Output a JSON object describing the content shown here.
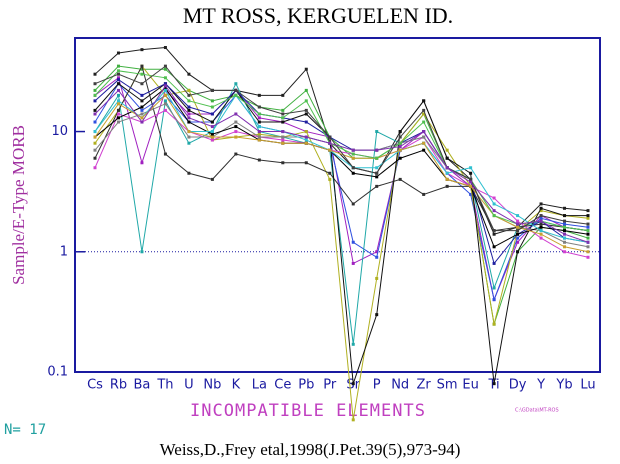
{
  "chart_data": {
    "type": "line",
    "title": "MT ROSS, KERGUELEN ID.",
    "y_label": "Sample/E-Type MORB",
    "x_label": "INCOMPATIBLE ELEMENTS",
    "sample_count": "N= 17",
    "file_note": "C:\\GData\\MT-ROS",
    "citation": "Weiss,D.,Frey etal,1998(J.Pet.39(5),973-94)",
    "log_y": true,
    "ylim": [
      0.1,
      60
    ],
    "yticks": [
      0.1,
      1,
      10
    ],
    "reference_line": 1,
    "categories": [
      "Cs",
      "Rb",
      "Ba",
      "Th",
      "U",
      "Nb",
      "K",
      "La",
      "Ce",
      "Pb",
      "Pr",
      "Sr",
      "P",
      "Nd",
      "Zr",
      "Sm",
      "Eu",
      "Ti",
      "Dy",
      "Y",
      "Yb",
      "Lu"
    ],
    "series": [
      {
        "color": "#202020",
        "values": [
          30,
          45,
          48,
          50,
          30,
          22,
          22,
          20,
          20,
          33,
          8,
          5,
          4.5,
          10,
          18,
          6,
          4,
          1.4,
          1.6,
          2.5,
          2.3,
          2.2
        ]
      },
      {
        "color": "#40b040",
        "values": [
          22,
          35,
          33,
          33,
          22,
          18,
          20,
          16,
          15,
          22,
          9,
          6,
          6,
          8,
          14,
          5,
          3.5,
          0.25,
          1,
          1.6,
          1.5,
          1.3
        ]
      },
      {
        "color": "#a020c0",
        "values": [
          20,
          28,
          5.5,
          22,
          14,
          14,
          22,
          13,
          12,
          10,
          9,
          0.8,
          1.0,
          7,
          10,
          5,
          3.5,
          0.4,
          1.2,
          2,
          1.6,
          1.5
        ]
      },
      {
        "color": "#3050e0",
        "values": [
          12,
          25,
          15,
          20,
          12,
          12,
          20,
          11,
          10,
          9,
          8,
          1.2,
          0.9,
          7,
          8,
          4.5,
          3,
          0.4,
          1.3,
          1.9,
          1.7,
          1.6
        ]
      },
      {
        "color": "#20a8a8",
        "values": [
          10,
          20,
          1.0,
          18,
          8,
          10,
          25,
          10,
          9,
          8,
          7,
          0.17,
          10,
          8,
          9,
          5,
          4,
          0.5,
          1.6,
          1.8,
          1.6,
          1.5
        ]
      },
      {
        "color": "#b0b020",
        "values": [
          8,
          15,
          35,
          20,
          22,
          8.5,
          9,
          9.5,
          9,
          10,
          4,
          0.04,
          0.6,
          8,
          14,
          7,
          3.5,
          0.25,
          1.5,
          2.2,
          2,
          1.9
        ]
      },
      {
        "color": "#303030",
        "values": [
          6,
          15,
          35,
          6.5,
          4.5,
          4,
          6.5,
          5.8,
          5.5,
          5.5,
          4.5,
          2.5,
          3.5,
          4,
          3,
          3.5,
          3.5,
          1.5,
          1.6,
          1.7,
          1.6,
          1.5
        ]
      },
      {
        "color": "#101010",
        "values": [
          15,
          25,
          18,
          25,
          15,
          12,
          22,
          12,
          12,
          14,
          9,
          0.08,
          0.3,
          10,
          18,
          6,
          4.5,
          0.08,
          1,
          2.3,
          2,
          2
        ]
      },
      {
        "color": "#2020a0",
        "values": [
          18,
          27,
          20,
          25,
          16,
          14,
          22,
          14,
          13,
          12,
          9,
          7,
          7,
          8,
          10,
          5,
          4,
          0.8,
          1.4,
          1.8,
          1.3,
          1.2
        ]
      },
      {
        "color": "#d040d0",
        "values": [
          5,
          14,
          12,
          15,
          10,
          8.5,
          10,
          9,
          8.5,
          8,
          7,
          6.5,
          6,
          7,
          9,
          4.5,
          3.5,
          2.8,
          1.8,
          1.3,
          1,
          0.9
        ]
      },
      {
        "color": "#808080",
        "values": [
          7,
          12,
          14,
          17,
          9,
          9,
          12,
          9,
          9,
          9,
          8,
          7,
          7,
          8,
          9,
          5,
          4,
          2,
          1.6,
          1.5,
          1.2,
          1.1
        ]
      },
      {
        "color": "#000000",
        "values": [
          9,
          13,
          16,
          23,
          12,
          9.5,
          11,
          8.5,
          8,
          8,
          7,
          4.5,
          4.2,
          6,
          7,
          4,
          3.5,
          1.1,
          1.4,
          1.6,
          1.5,
          1.4
        ]
      },
      {
        "color": "#30c0d0",
        "values": [
          10,
          18,
          13,
          22,
          10,
          10,
          20,
          11,
          10,
          8.5,
          7,
          5,
          5,
          7,
          8,
          4.5,
          5,
          2.5,
          2,
          1.5,
          1.3,
          1.2
        ]
      },
      {
        "color": "#c8a030",
        "values": [
          9,
          17,
          13,
          20,
          10,
          9,
          9,
          8.5,
          8,
          8,
          7,
          6,
          6,
          7,
          8,
          4,
          3.5,
          2,
          1.6,
          1.4,
          1.1,
          1
        ]
      },
      {
        "color": "#50c050",
        "values": [
          20,
          32,
          30,
          28,
          18,
          16,
          20,
          14,
          13,
          18,
          8,
          6.5,
          6,
          8,
          12,
          5,
          4,
          2,
          1.7,
          1.8,
          1.6,
          1.5
        ]
      },
      {
        "color": "#404040",
        "values": [
          25,
          30,
          25,
          35,
          20,
          22,
          22,
          16,
          14,
          15,
          9,
          5,
          4.5,
          9,
          15,
          5,
          4,
          1.5,
          1.5,
          2,
          1.8,
          1.7
        ]
      },
      {
        "color": "#8030b0",
        "values": [
          14,
          22,
          12,
          24,
          13,
          11,
          14,
          10,
          10,
          9,
          8,
          7,
          7,
          7.5,
          10,
          5,
          3.8,
          2.2,
          1.7,
          1.8,
          1.4,
          1.2
        ]
      }
    ]
  }
}
